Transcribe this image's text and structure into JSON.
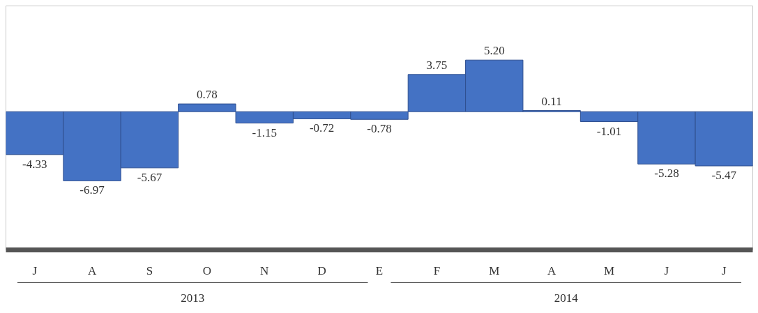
{
  "chart_data": {
    "type": "bar",
    "categories": [
      "J",
      "A",
      "S",
      "O",
      "N",
      "D",
      "E",
      "F",
      "M",
      "A",
      "M",
      "J",
      "J"
    ],
    "values": [
      -4.33,
      -6.97,
      -5.67,
      0.78,
      -1.15,
      -0.72,
      -0.78,
      3.75,
      5.2,
      0.11,
      -1.01,
      -5.28,
      -5.47
    ],
    "value_labels": [
      "-4.33",
      "-6.97",
      "-5.67",
      "0.78",
      "-1.15",
      "-0.72",
      "-0.78",
      "3.75",
      "5.20",
      "0.11",
      "-1.01",
      "-5.28",
      "-5.47"
    ],
    "color": "#4472c4",
    "annotations": [
      "2013",
      "2014"
    ],
    "grid": false
  }
}
